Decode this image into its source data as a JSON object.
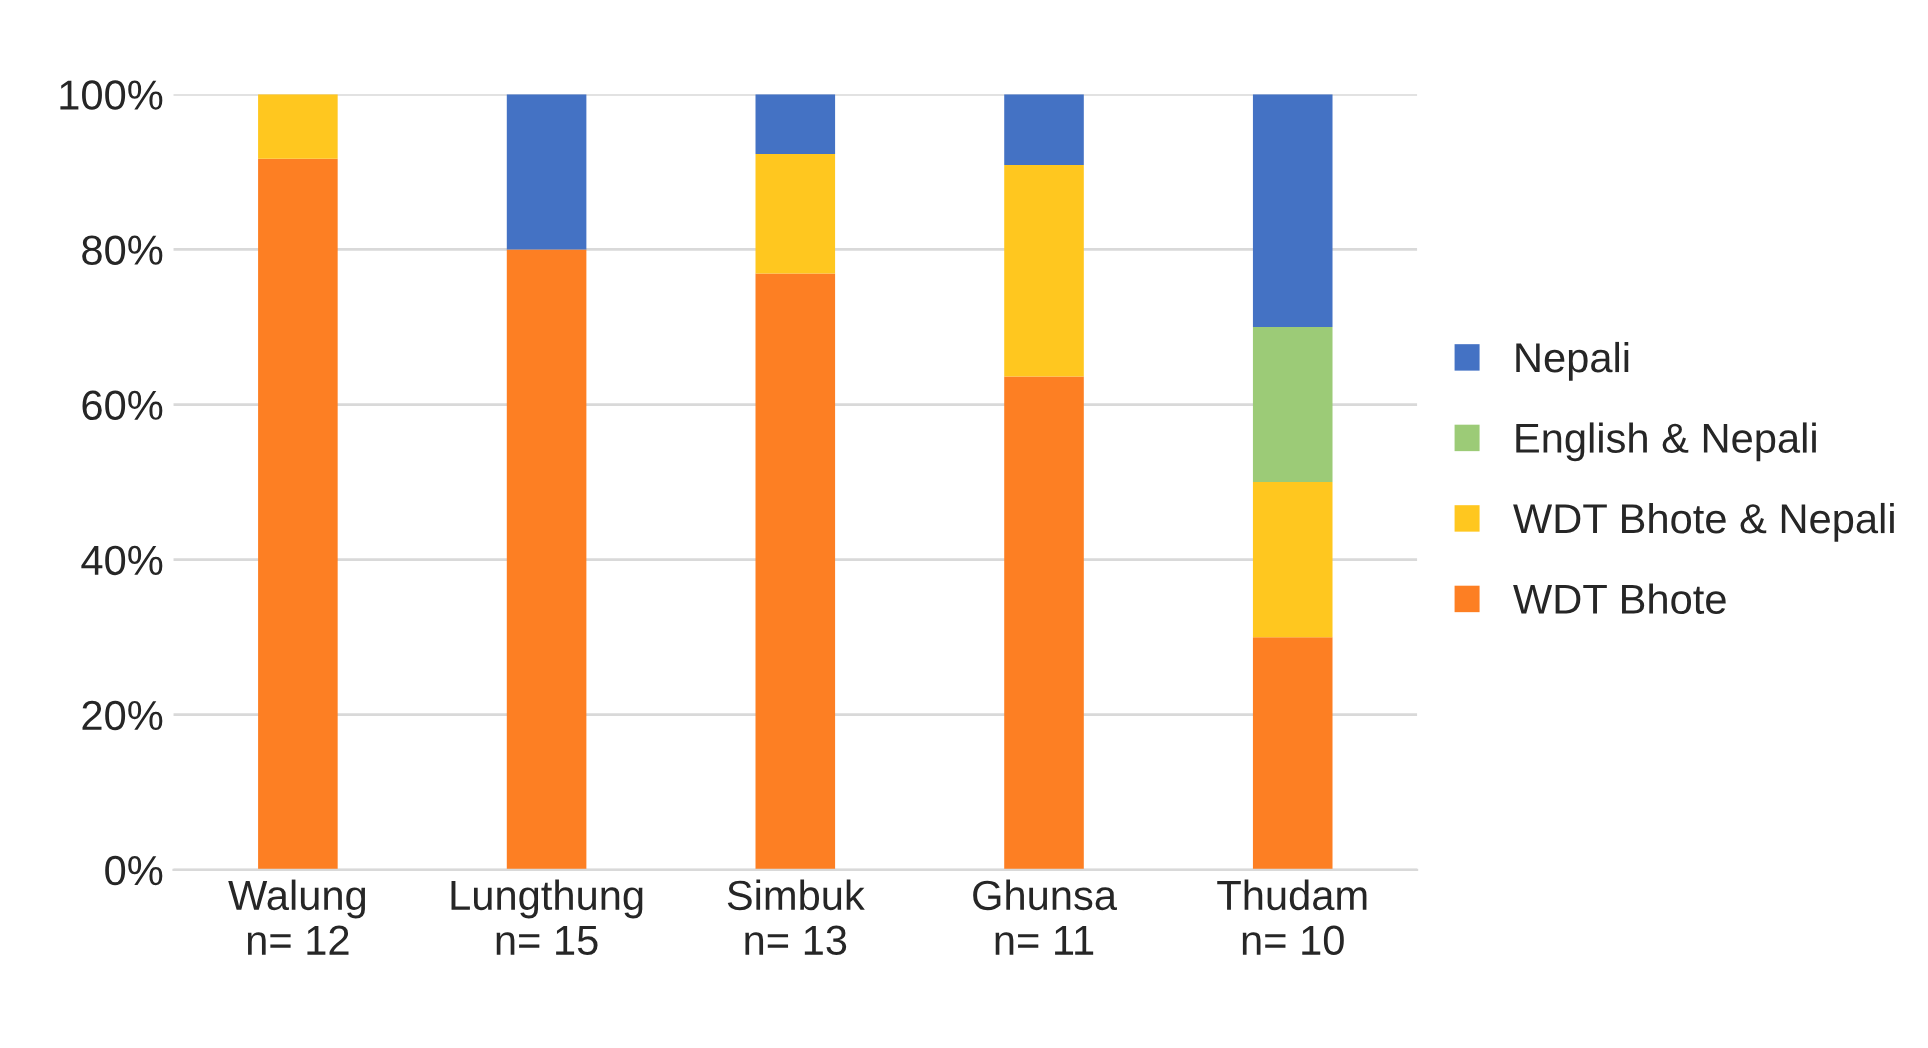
{
  "chart_data": {
    "type": "bar",
    "stacked": true,
    "categories": [
      "Walung\nn= 12",
      "Lungthung\nn= 15",
      "Simbuk\nn= 13",
      "Ghunsa\nn= 11",
      "Thudam\nn= 10"
    ],
    "series": [
      {
        "name": "WDT Bhote",
        "color": "#fd7f23",
        "values": [
          91.7,
          80,
          76.9,
          63.6,
          30
        ]
      },
      {
        "name": "WDT Bhote & Nepali",
        "color": "#ffc71f",
        "values": [
          8.3,
          0,
          15.4,
          27.3,
          20
        ]
      },
      {
        "name": "English & Nepali",
        "color": "#9ccb77",
        "values": [
          0,
          0,
          0,
          0,
          20
        ]
      },
      {
        "name": "Nepali",
        "color": "#4472c4",
        "values": [
          0,
          20,
          7.7,
          9.1,
          30
        ]
      }
    ],
    "ylim": [
      0,
      100
    ],
    "yticks": [
      {
        "value": 0,
        "label": "0%"
      },
      {
        "value": 20,
        "label": "20%"
      },
      {
        "value": 40,
        "label": "40%"
      },
      {
        "value": 60,
        "label": "60%"
      },
      {
        "value": 80,
        "label": "80%"
      },
      {
        "value": 100,
        "label": "100%"
      }
    ],
    "grid": "y",
    "legend": "right"
  }
}
